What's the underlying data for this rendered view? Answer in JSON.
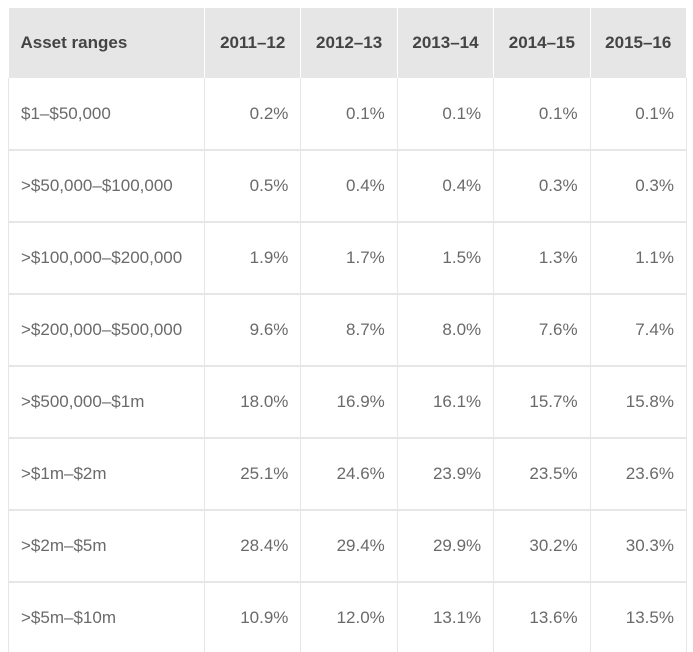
{
  "table": {
    "headers": [
      "Asset ranges",
      "2011–12",
      "2012–13",
      "2013–14",
      "2014–15",
      "2015–16"
    ],
    "rows": [
      {
        "range": "$1–$50,000",
        "values": [
          "0.2%",
          "0.1%",
          "0.1%",
          "0.1%",
          "0.1%"
        ]
      },
      {
        "range": ">$50,000–$100,000",
        "values": [
          "0.5%",
          "0.4%",
          "0.4%",
          "0.3%",
          "0.3%"
        ]
      },
      {
        "range": ">$100,000–$200,000",
        "values": [
          "1.9%",
          "1.7%",
          "1.5%",
          "1.3%",
          "1.1%"
        ]
      },
      {
        "range": ">$200,000–$500,000",
        "values": [
          "9.6%",
          "8.7%",
          "8.0%",
          "7.6%",
          "7.4%"
        ]
      },
      {
        "range": ">$500,000–$1m",
        "values": [
          "18.0%",
          "16.9%",
          "16.1%",
          "15.7%",
          "15.8%"
        ]
      },
      {
        "range": ">$1m–$2m",
        "values": [
          "25.1%",
          "24.6%",
          "23.9%",
          "23.5%",
          "23.6%"
        ]
      },
      {
        "range": ">$2m–$5m",
        "values": [
          "28.4%",
          "29.4%",
          "29.9%",
          "30.2%",
          "30.3%"
        ]
      },
      {
        "range": ">$5m–$10m",
        "values": [
          "10.9%",
          "12.0%",
          "13.1%",
          "13.6%",
          "13.5%"
        ]
      }
    ]
  }
}
